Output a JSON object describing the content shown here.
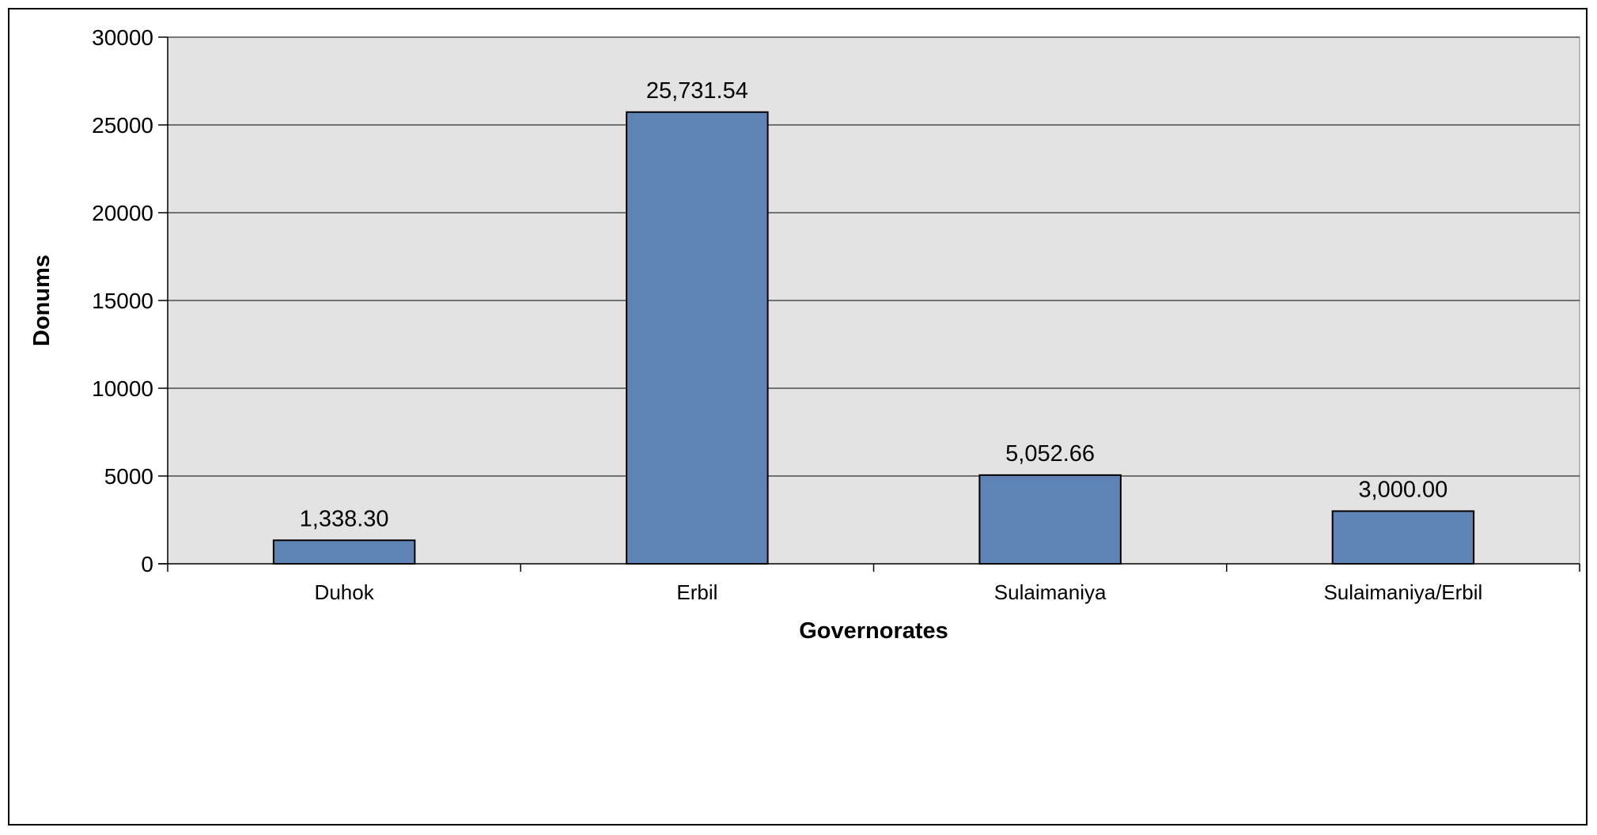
{
  "chart_data": {
    "type": "bar",
    "categories": [
      "Duhok",
      "Erbil",
      "Sulaimaniya",
      "Sulaimaniya/Erbil"
    ],
    "values": [
      1338.3,
      25731.54,
      5052.66,
      3000.0
    ],
    "data_labels": [
      "1,338.30",
      "25,731.54",
      "5,052.66",
      "3,000.00"
    ],
    "title": "",
    "xlabel": "Governorates",
    "ylabel": "Donums",
    "ylim": [
      0,
      30000
    ],
    "yticks": [
      0,
      5000,
      10000,
      15000,
      20000,
      25000,
      30000
    ],
    "ytick_labels": [
      "0",
      "5000",
      "10000",
      "15000",
      "20000",
      "25000",
      "30000"
    ],
    "grid": true,
    "legend": "none",
    "colors": {
      "bar_fill": "#5f83b5",
      "bar_stroke": "#000000",
      "plot_background": "#e3e3e3",
      "gridline": "#000000",
      "frame": "#000000"
    }
  }
}
